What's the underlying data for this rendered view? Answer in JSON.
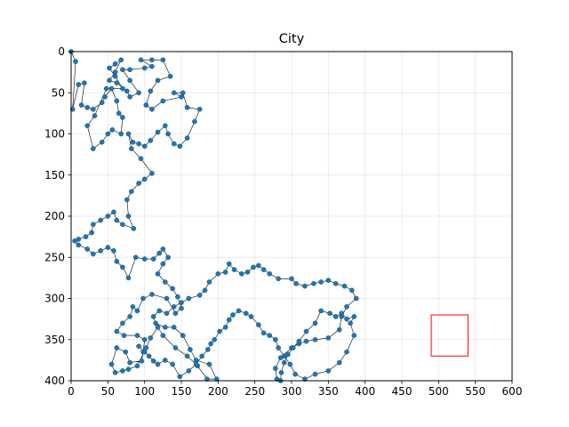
{
  "chart_data": {
    "type": "scatter",
    "title": "City",
    "xlabel": "",
    "ylabel": "",
    "xlim": [
      0,
      600
    ],
    "ylim": [
      400,
      0
    ],
    "y_inverted": true,
    "grid": true,
    "x_ticks": [
      0,
      50,
      100,
      150,
      200,
      250,
      300,
      350,
      400,
      450,
      500,
      550,
      600
    ],
    "y_ticks": [
      0,
      50,
      100,
      150,
      200,
      250,
      300,
      350,
      400
    ],
    "point_color": "#1f77b4",
    "line_color": "#000000",
    "highlight_color": "#ff0000",
    "highlight_box": {
      "x0": 490,
      "x1": 540,
      "y0": 320,
      "y1": 370
    },
    "route": [
      [
        0,
        0
      ],
      [
        6,
        12
      ],
      [
        2,
        70
      ],
      [
        10,
        40
      ],
      [
        18,
        38
      ],
      [
        14,
        65
      ],
      [
        22,
        68
      ],
      [
        30,
        70
      ],
      [
        42,
        62
      ],
      [
        46,
        55
      ],
      [
        55,
        45
      ],
      [
        62,
        60
      ],
      [
        65,
        75
      ],
      [
        70,
        80
      ],
      [
        68,
        100
      ],
      [
        56,
        95
      ],
      [
        50,
        100
      ],
      [
        42,
        110
      ],
      [
        30,
        118
      ],
      [
        22,
        90
      ],
      [
        32,
        78
      ],
      [
        48,
        45
      ],
      [
        70,
        45
      ],
      [
        60,
        30
      ],
      [
        52,
        20
      ],
      [
        60,
        15
      ],
      [
        68,
        10
      ],
      [
        60,
        25
      ],
      [
        52,
        35
      ],
      [
        62,
        38
      ],
      [
        76,
        48
      ],
      [
        80,
        55
      ],
      [
        92,
        50
      ],
      [
        80,
        35
      ],
      [
        70,
        22
      ],
      [
        80,
        22
      ],
      [
        100,
        20
      ],
      [
        110,
        18
      ],
      [
        95,
        10
      ],
      [
        110,
        10
      ],
      [
        125,
        10
      ],
      [
        135,
        30
      ],
      [
        118,
        35
      ],
      [
        108,
        48
      ],
      [
        102,
        65
      ],
      [
        110,
        70
      ],
      [
        125,
        60
      ],
      [
        150,
        55
      ],
      [
        140,
        50
      ],
      [
        152,
        50
      ],
      [
        158,
        68
      ],
      [
        175,
        70
      ],
      [
        168,
        85
      ],
      [
        158,
        105
      ],
      [
        148,
        115
      ],
      [
        140,
        112
      ],
      [
        132,
        100
      ],
      [
        128,
        90
      ],
      [
        118,
        98
      ],
      [
        108,
        108
      ],
      [
        100,
        115
      ],
      [
        92,
        112
      ],
      [
        84,
        110
      ],
      [
        78,
        100
      ],
      [
        82,
        118
      ],
      [
        95,
        130
      ],
      [
        110,
        148
      ],
      [
        100,
        155
      ],
      [
        92,
        160
      ],
      [
        82,
        170
      ],
      [
        76,
        180
      ],
      [
        78,
        200
      ],
      [
        85,
        215
      ],
      [
        70,
        210
      ],
      [
        62,
        205
      ],
      [
        58,
        195
      ],
      [
        50,
        200
      ],
      [
        40,
        205
      ],
      [
        30,
        210
      ],
      [
        28,
        220
      ],
      [
        20,
        225
      ],
      [
        10,
        228
      ],
      [
        5,
        230
      ],
      [
        10,
        235
      ],
      [
        22,
        240
      ],
      [
        30,
        246
      ],
      [
        40,
        242
      ],
      [
        50,
        238
      ],
      [
        58,
        242
      ],
      [
        62,
        255
      ],
      [
        70,
        262
      ],
      [
        78,
        275
      ],
      [
        88,
        250
      ],
      [
        100,
        252
      ],
      [
        112,
        252
      ],
      [
        120,
        245
      ],
      [
        125,
        240
      ],
      [
        132,
        250
      ],
      [
        125,
        258
      ],
      [
        118,
        270
      ],
      [
        128,
        280
      ],
      [
        138,
        288
      ],
      [
        145,
        298
      ],
      [
        150,
        312
      ],
      [
        142,
        318
      ],
      [
        130,
        300
      ],
      [
        110,
        295
      ],
      [
        98,
        300
      ],
      [
        90,
        315
      ],
      [
        84,
        310
      ],
      [
        80,
        322
      ],
      [
        70,
        330
      ],
      [
        62,
        340
      ],
      [
        72,
        345
      ],
      [
        90,
        345
      ],
      [
        100,
        350
      ],
      [
        98,
        365
      ],
      [
        96,
        376
      ],
      [
        80,
        378
      ],
      [
        74,
        365
      ],
      [
        62,
        360
      ],
      [
        55,
        380
      ],
      [
        60,
        390
      ],
      [
        70,
        388
      ],
      [
        78,
        386
      ],
      [
        90,
        382
      ],
      [
        102,
        360
      ],
      [
        108,
        348
      ],
      [
        118,
        335
      ],
      [
        125,
        345
      ],
      [
        142,
        360
      ],
      [
        158,
        370
      ],
      [
        172,
        382
      ],
      [
        185,
        398
      ],
      [
        198,
        398
      ],
      [
        188,
        380
      ],
      [
        170,
        375
      ],
      [
        162,
        362
      ],
      [
        152,
        345
      ],
      [
        140,
        335
      ],
      [
        128,
        335
      ],
      [
        115,
        330
      ],
      [
        112,
        322
      ],
      [
        120,
        315
      ],
      [
        130,
        318
      ],
      [
        140,
        310
      ],
      [
        150,
        305
      ],
      [
        160,
        300
      ],
      [
        175,
        296
      ],
      [
        182,
        290
      ],
      [
        188,
        280
      ],
      [
        200,
        270
      ],
      [
        210,
        268
      ],
      [
        215,
        258
      ],
      [
        222,
        265
      ],
      [
        232,
        270
      ],
      [
        240,
        268
      ],
      [
        248,
        262
      ],
      [
        255,
        260
      ],
      [
        262,
        265
      ],
      [
        270,
        270
      ],
      [
        282,
        276
      ],
      [
        300,
        276
      ],
      [
        306,
        282
      ],
      [
        318,
        285
      ],
      [
        330,
        282
      ],
      [
        340,
        280
      ],
      [
        350,
        278
      ],
      [
        360,
        282
      ],
      [
        372,
        285
      ],
      [
        382,
        290
      ],
      [
        388,
        300
      ],
      [
        375,
        310
      ],
      [
        368,
        322
      ],
      [
        365,
        338
      ],
      [
        350,
        348
      ],
      [
        332,
        350
      ],
      [
        320,
        352
      ],
      [
        310,
        355
      ],
      [
        300,
        360
      ],
      [
        285,
        372
      ],
      [
        278,
        385
      ],
      [
        280,
        398
      ],
      [
        285,
        400
      ],
      [
        286,
        390
      ],
      [
        290,
        378
      ],
      [
        295,
        368
      ],
      [
        302,
        360
      ],
      [
        310,
        352
      ],
      [
        320,
        340
      ],
      [
        332,
        330
      ],
      [
        340,
        315
      ],
      [
        352,
        318
      ],
      [
        360,
        322
      ],
      [
        368,
        318
      ],
      [
        375,
        325
      ],
      [
        385,
        322
      ],
      [
        380,
        330
      ],
      [
        385,
        345
      ],
      [
        375,
        365
      ],
      [
        365,
        378
      ],
      [
        350,
        388
      ],
      [
        332,
        392
      ],
      [
        318,
        398
      ],
      [
        305,
        392
      ],
      [
        298,
        380
      ],
      [
        290,
        370
      ],
      [
        282,
        360
      ],
      [
        278,
        350
      ],
      [
        270,
        345
      ],
      [
        262,
        342
      ],
      [
        255,
        332
      ],
      [
        245,
        322
      ],
      [
        238,
        318
      ],
      [
        228,
        315
      ],
      [
        220,
        320
      ],
      [
        215,
        326
      ],
      [
        210,
        335
      ],
      [
        202,
        340
      ],
      [
        195,
        350
      ],
      [
        190,
        355
      ],
      [
        186,
        362
      ],
      [
        178,
        370
      ],
      [
        170,
        380
      ],
      [
        160,
        388
      ],
      [
        148,
        395
      ],
      [
        138,
        380
      ],
      [
        128,
        375
      ],
      [
        118,
        380
      ],
      [
        112,
        376
      ],
      [
        106,
        370
      ],
      [
        100,
        365
      ],
      [
        92,
        358
      ]
    ]
  }
}
